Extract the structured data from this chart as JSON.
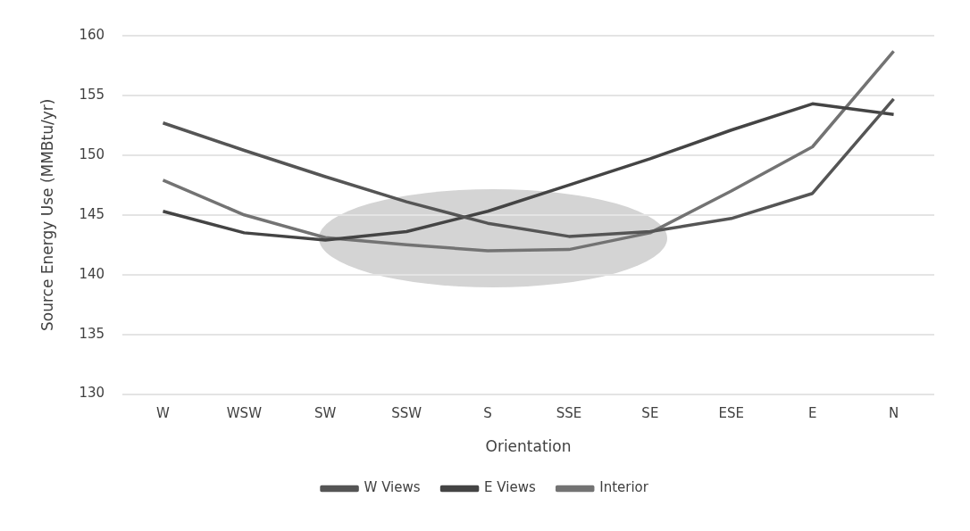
{
  "chart_data": {
    "type": "line",
    "xlabel": "Orientation",
    "ylabel": "Source Energy Use (MMBtu/yr)",
    "categories": [
      "W",
      "WSW",
      "SW",
      "SSW",
      "S",
      "SSE",
      "SE",
      "ESE",
      "E",
      "N"
    ],
    "series": [
      {
        "name": "W Views",
        "color": "#555555",
        "values": [
          152.7,
          150.4,
          148.2,
          146.1,
          144.3,
          143.2,
          143.6,
          144.7,
          146.8,
          154.7
        ]
      },
      {
        "name": "E Views",
        "color": "#444444",
        "values": [
          145.3,
          143.5,
          142.9,
          143.6,
          145.3,
          147.5,
          149.7,
          152.1,
          154.3,
          153.4
        ]
      },
      {
        "name": "Interior",
        "color": "#737373",
        "values": [
          147.9,
          145.0,
          143.1,
          142.5,
          142.0,
          142.1,
          143.5,
          147.0,
          150.7,
          158.7
        ]
      }
    ],
    "ylim": [
      130,
      160
    ],
    "yticks": [
      130,
      135,
      140,
      145,
      150,
      155,
      160
    ],
    "grid": "y",
    "legend": "bottom",
    "marker": "none",
    "line_style": "solid"
  }
}
